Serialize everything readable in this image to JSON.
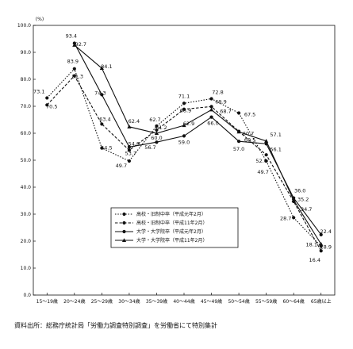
{
  "chart_data": {
    "type": "line",
    "unit_label": "(%)",
    "categories": [
      "15～19歳",
      "20～24歳",
      "25～29歳",
      "30～34歳",
      "35～39歳",
      "40～44歳",
      "45～49歳",
      "50～54歳",
      "55～59歳",
      "60～64歳",
      "65歳以上"
    ],
    "yticks": [
      "0.0",
      "10.0",
      "20.0",
      "30.0",
      "40.0",
      "50.0",
      "60.0",
      "70.0",
      "80.0",
      "90.0",
      "100.0"
    ],
    "ylim": [
      0,
      100
    ],
    "grid": false,
    "legend_position": "lower-left-inside",
    "series": [
      {
        "name": "高校・旧制中卒（平成元年2月）",
        "style": "dotted",
        "marker": "circle",
        "values": [
          73.1,
          83.9,
          54.5,
          49.7,
          62.7,
          71.1,
          72.8,
          67.5,
          49.7,
          28.7,
          18.1
        ]
      },
      {
        "name": "高校・旧制中卒（平成11年2月）",
        "style": "dashed",
        "marker": "circle",
        "values": [
          70.5,
          81.3,
          63.4,
          53.7,
          61.2,
          68.9,
          69.9,
          60.7,
          52.0,
          34.7,
          16.4
        ]
      },
      {
        "name": "大学・大学院卒（平成元年2月）",
        "style": "solid",
        "marker": "circle",
        "values": [
          null,
          93.4,
          74.3,
          54.9,
          56.7,
          59.0,
          66.0,
          57.0,
          56.1,
          36.0,
          22.4
        ]
      },
      {
        "name": "大学・大学院卒（平成11年2月）",
        "style": "solid",
        "marker": "triangle",
        "values": [
          null,
          92.7,
          84.1,
          62.4,
          60.0,
          62.9,
          68.7,
          60.5,
          57.1,
          35.2,
          18.9
        ]
      }
    ],
    "labels": [
      {
        "text": "73.1",
        "series": 0,
        "index": 0,
        "dx": -10,
        "dy": -6
      },
      {
        "text": "70.5",
        "series": 1,
        "index": 0,
        "dx": 6,
        "dy": 4
      },
      {
        "text": "83.9",
        "series": 0,
        "index": 1,
        "dx": -2,
        "dy": -7
      },
      {
        "text": "81.3",
        "series": 1,
        "index": 1,
        "dx": 4,
        "dy": 3
      },
      {
        "text": "93.4",
        "series": 2,
        "index": 1,
        "dx": -4,
        "dy": -7
      },
      {
        "text": "92.7",
        "series": 3,
        "index": 1,
        "dx": 8,
        "dy": 1
      },
      {
        "text": "74.3",
        "series": 2,
        "index": 2,
        "dx": -2,
        "dy": 0
      },
      {
        "text": "84.1",
        "series": 3,
        "index": 2,
        "dx": 6,
        "dy": 0
      },
      {
        "text": "63.4",
        "series": 1,
        "index": 2,
        "dx": 4,
        "dy": -4
      },
      {
        "text": "54.5",
        "series": 0,
        "index": 2,
        "dx": 6,
        "dy": 2
      },
      {
        "text": "62.4",
        "series": 3,
        "index": 3,
        "dx": 6,
        "dy": -5
      },
      {
        "text": "54.9",
        "series": 2,
        "index": 3,
        "dx": 6,
        "dy": -2
      },
      {
        "text": "53.7",
        "series": 1,
        "index": 3,
        "dx": 2,
        "dy": 6
      },
      {
        "text": "49.7",
        "series": 0,
        "index": 3,
        "dx": -10,
        "dy": 8
      },
      {
        "text": "62.7",
        "series": 0,
        "index": 4,
        "dx": -2,
        "dy": -6
      },
      {
        "text": "61.2",
        "series": 1,
        "index": 4,
        "dx": 6,
        "dy": -1
      },
      {
        "text": "60.0",
        "series": 3,
        "index": 4,
        "dx": 0,
        "dy": 8
      },
      {
        "text": "56.7",
        "series": 2,
        "index": 4,
        "dx": -8,
        "dy": 9
      },
      {
        "text": "71.1",
        "series": 0,
        "index": 5,
        "dx": 0,
        "dy": -7
      },
      {
        "text": "68.9",
        "series": 1,
        "index": 5,
        "dx": 2,
        "dy": 4
      },
      {
        "text": "62.9",
        "series": 3,
        "index": 5,
        "dx": 6,
        "dy": 0
      },
      {
        "text": "59.0",
        "series": 2,
        "index": 5,
        "dx": 0,
        "dy": 10
      },
      {
        "text": "72.8",
        "series": 0,
        "index": 6,
        "dx": 8,
        "dy": -6
      },
      {
        "text": "69.9",
        "series": 1,
        "index": 6,
        "dx": 12,
        "dy": -4
      },
      {
        "text": "68.7",
        "series": 3,
        "index": 6,
        "dx": 18,
        "dy": 4
      },
      {
        "text": "66.0",
        "series": 2,
        "index": 6,
        "dx": 2,
        "dy": 10
      },
      {
        "text": "67.5",
        "series": 0,
        "index": 7,
        "dx": 14,
        "dy": 4
      },
      {
        "text": "60.7",
        "series": 1,
        "index": 7,
        "dx": 12,
        "dy": 5
      },
      {
        "text": "60.5",
        "series": 3,
        "index": 7,
        "dx": 14,
        "dy": 12
      },
      {
        "text": "57.0",
        "series": 2,
        "index": 7,
        "dx": 0,
        "dy": 12
      },
      {
        "text": "57.1",
        "series": 3,
        "index": 8,
        "dx": 12,
        "dy": -6
      },
      {
        "text": "56.1",
        "series": 2,
        "index": 8,
        "dx": 12,
        "dy": 9
      },
      {
        "text": "52.0",
        "series": 1,
        "index": 8,
        "dx": -6,
        "dy": 10
      },
      {
        "text": "49.7",
        "series": 0,
        "index": 8,
        "dx": -4,
        "dy": 16
      },
      {
        "text": "36.0",
        "series": 2,
        "index": 9,
        "dx": 8,
        "dy": -7
      },
      {
        "text": "35.2",
        "series": 3,
        "index": 9,
        "dx": 12,
        "dy": 1
      },
      {
        "text": "34.7",
        "series": 1,
        "index": 9,
        "dx": 16,
        "dy": 12
      },
      {
        "text": "28.7",
        "series": 0,
        "index": 9,
        "dx": -10,
        "dy": 3
      },
      {
        "text": "22.4",
        "series": 2,
        "index": 10,
        "dx": 6,
        "dy": -2
      },
      {
        "text": "18.9",
        "series": 3,
        "index": 10,
        "dx": 6,
        "dy": 6
      },
      {
        "text": "18.1",
        "series": 0,
        "index": 10,
        "dx": -12,
        "dy": 0
      },
      {
        "text": "16.4",
        "series": 1,
        "index": 10,
        "dx": -8,
        "dy": 14
      }
    ]
  },
  "source_note": "資料出所：総務庁統計局「労働力調査特別調査」を労働省にて特別集計"
}
